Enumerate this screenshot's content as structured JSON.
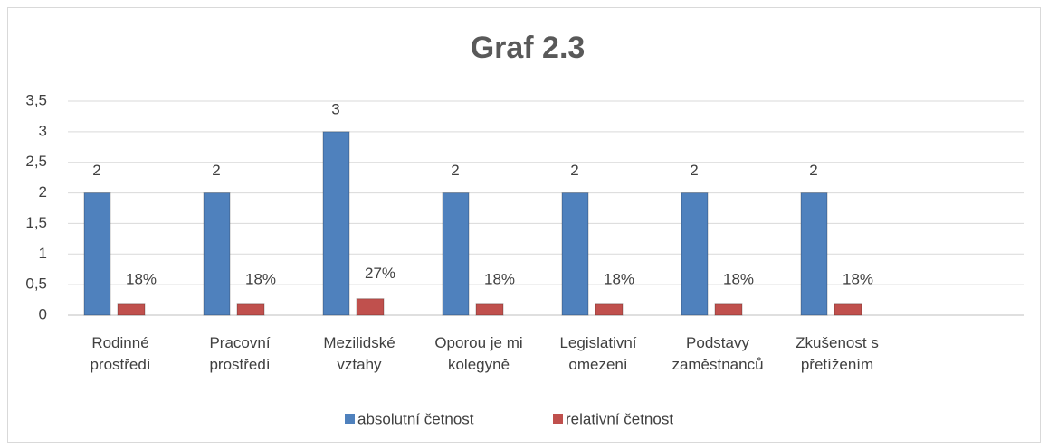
{
  "chart_data": {
    "type": "bar",
    "title": "Graf 2.3",
    "categories": [
      "Rodinné prostředí",
      "Pracovní prostředí",
      "Mezilidské vztahy",
      "Oporou je mi kolegyně",
      "Legislativní omezení",
      "Podstavy zaměstnanců",
      "Zkušenost s přetížením",
      null
    ],
    "series": [
      {
        "name": "absolutní četnost",
        "color": "#4f81bd",
        "values": [
          2,
          2,
          3,
          2,
          2,
          2,
          2,
          null
        ]
      },
      {
        "name": "relativní četnost",
        "color": "#c0504d",
        "values": [
          0.18,
          0.18,
          0.27,
          0.18,
          0.18,
          0.18,
          0.18,
          null
        ],
        "value_labels": [
          "18%",
          "18%",
          "27%",
          "18%",
          "18%",
          "18%",
          "18%",
          null
        ]
      }
    ],
    "ylim": [
      0,
      3.5
    ],
    "yticks": [
      0,
      {
        "value": 0.5,
        "label": "0,5"
      },
      1,
      {
        "value": 1.5,
        "label": "1,5"
      },
      2,
      {
        "value": 2.5,
        "label": "2,5"
      },
      3,
      {
        "value": 3.5,
        "label": "3,5"
      }
    ],
    "grid": true,
    "legend": "bottom"
  }
}
